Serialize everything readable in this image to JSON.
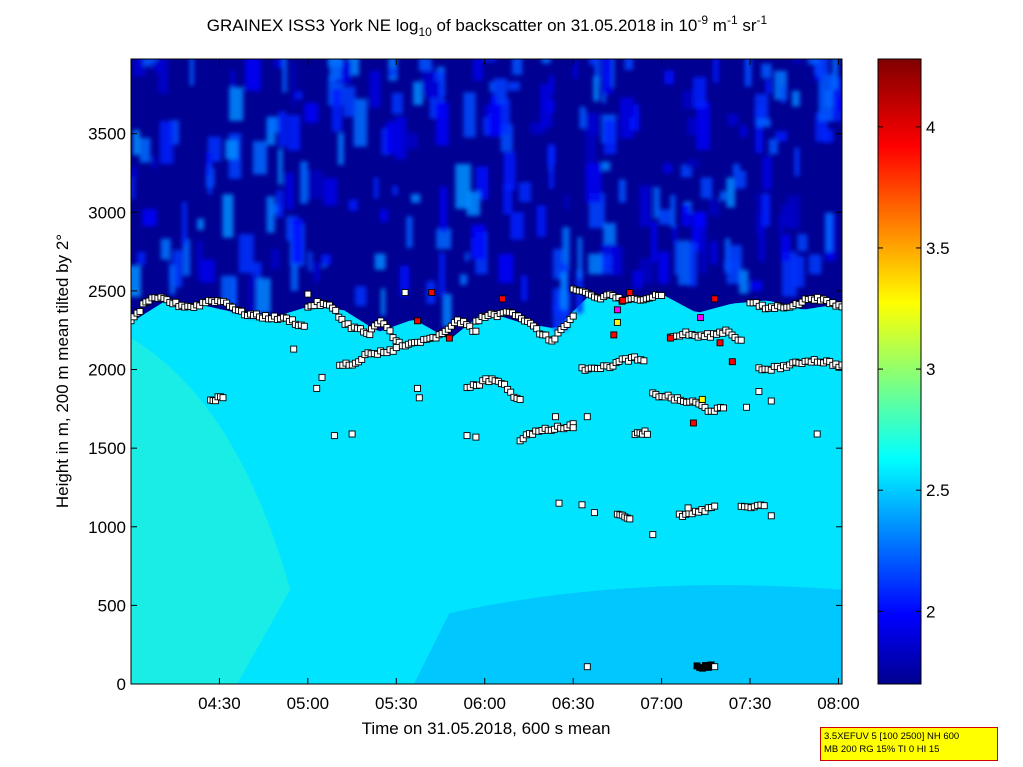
{
  "chart_data": {
    "type": "heatmap",
    "title_parts": {
      "main": "GRAINEX ISS3 York NE log",
      "main_sub": "10",
      "middle": " of backscatter on 31.05.2018 in 10",
      "exp1": "-9",
      "unit1": " m",
      "exp2": "-1",
      "unit2": " sr",
      "exp3": "-1"
    },
    "xlabel": "Time on 31.05.2018, 600 s mean",
    "ylabel": "Height in m, 200 m mean tilted by 2°",
    "x_ticks": [
      "04:30",
      "05:00",
      "05:30",
      "06:00",
      "06:30",
      "07:00",
      "07:30",
      "08:00"
    ],
    "x_tick_hours": [
      4.5,
      5.0,
      5.5,
      6.0,
      6.5,
      7.0,
      7.5,
      8.0
    ],
    "xlim_hours": [
      4.0,
      8.02
    ],
    "y_ticks": [
      "0",
      "500",
      "1000",
      "1500",
      "2000",
      "2500",
      "3000",
      "3500"
    ],
    "y_tick_values": [
      0,
      500,
      1000,
      1500,
      2000,
      2500,
      3000,
      3500
    ],
    "ylim": [
      0,
      3975
    ],
    "colorbar": {
      "ticks": [
        "2",
        "2.5",
        "3",
        "3.5",
        "4"
      ],
      "tick_values": [
        2,
        2.5,
        3,
        3.5,
        4
      ],
      "range": [
        1.7,
        4.28
      ],
      "colormap": "jet"
    },
    "field": {
      "boundary_layer_top_m": [
        [
          4.0,
          2300
        ],
        [
          4.2,
          2440
        ],
        [
          4.4,
          2410
        ],
        [
          4.6,
          2360
        ],
        [
          4.8,
          2330
        ],
        [
          5.0,
          2400
        ],
        [
          5.2,
          2380
        ],
        [
          5.4,
          2240
        ],
        [
          5.6,
          2320
        ],
        [
          5.8,
          2190
        ],
        [
          6.0,
          2370
        ],
        [
          6.2,
          2300
        ],
        [
          6.4,
          2260
        ],
        [
          6.6,
          2480
        ],
        [
          6.8,
          2440
        ],
        [
          7.0,
          2480
        ],
        [
          7.2,
          2360
        ],
        [
          7.4,
          2420
        ],
        [
          7.6,
          2440
        ],
        [
          7.8,
          2380
        ],
        [
          8.02,
          2420
        ]
      ],
      "boundary_layer_value": 2.6,
      "lower_value": 2.55,
      "near_surface_low_value": 2.4,
      "free_troposphere_value": 1.75,
      "aerosol_layer_top_value": 2.85
    },
    "marker_segments": [
      {
        "t0": 4.0,
        "t1": 4.98,
        "h": [
          2300,
          2440,
          2450,
          2410,
          2400,
          2440,
          2430,
          2360,
          2340,
          2330,
          2320,
          2270
        ],
        "color": "white"
      },
      {
        "t0": 5.0,
        "t1": 5.35,
        "h": [
          2400,
          2420,
          2410,
          2390,
          2300,
          2270,
          2250,
          2220
        ],
        "color": "white"
      },
      {
        "t0": 5.36,
        "t1": 5.95,
        "h": [
          2250,
          2310,
          2220,
          2140,
          2170,
          2180,
          2200,
          2230,
          2310,
          2290,
          2240
        ],
        "color": "white"
      },
      {
        "t0": 5.95,
        "t1": 6.5,
        "h": [
          2300,
          2350,
          2340,
          2380,
          2340,
          2290,
          2230,
          2180,
          2260,
          2330
        ],
        "color": "white"
      },
      {
        "t0": 6.5,
        "t1": 7.0,
        "h": [
          2500,
          2490,
          2450,
          2480,
          2430,
          2450,
          2460,
          2480
        ],
        "color": "white"
      },
      {
        "t0": 7.05,
        "t1": 7.45,
        "h": [
          2200,
          2230,
          2210,
          2220,
          2250,
          2180
        ],
        "color": "white"
      },
      {
        "t0": 7.5,
        "t1": 8.02,
        "h": [
          2430,
          2390,
          2400,
          2410,
          2460,
          2430,
          2400
        ],
        "color": "white"
      },
      {
        "t0": 5.18,
        "t1": 5.5,
        "h": [
          2030,
          2040,
          2100,
          2110,
          2130
        ],
        "color": "white"
      },
      {
        "t0": 5.9,
        "t1": 6.2,
        "h": [
          1890,
          1900,
          1930,
          1940,
          1910,
          1850,
          1800
        ],
        "color": "white"
      },
      {
        "t0": 6.55,
        "t1": 6.9,
        "h": [
          2000,
          2020,
          2010,
          2030,
          2060,
          2070,
          2050
        ],
        "color": "white"
      },
      {
        "t0": 6.95,
        "t1": 7.35,
        "h": [
          1840,
          1830,
          1800,
          1790,
          1740,
          1750
        ],
        "color": "white"
      },
      {
        "t0": 7.55,
        "t1": 8.02,
        "h": [
          2000,
          2010,
          2030,
          2060,
          2050,
          2020
        ],
        "color": "white"
      },
      {
        "t0": 6.2,
        "t1": 6.5,
        "h": [
          1550,
          1600,
          1620,
          1630,
          1650
        ],
        "color": "white"
      },
      {
        "t0": 4.45,
        "t1": 4.52,
        "h": [
          1810,
          1820
        ],
        "color": "white"
      },
      {
        "t0": 6.85,
        "t1": 6.92,
        "h": [
          1600,
          1600
        ],
        "color": "white"
      },
      {
        "t0": 7.45,
        "t1": 7.58,
        "h": [
          1130,
          1130,
          1130
        ],
        "color": "white"
      },
      {
        "t0": 7.1,
        "t1": 7.3,
        "h": [
          1070,
          1080,
          1100,
          1120
        ],
        "color": "white"
      },
      {
        "t0": 6.75,
        "t1": 6.82,
        "h": [
          1090,
          1050
        ],
        "color": "white"
      },
      {
        "t0": 7.2,
        "t1": 7.28,
        "h": [
          110,
          110
        ],
        "color": "black"
      }
    ],
    "scatter_points": [
      {
        "t": 5.0,
        "h": 2480,
        "c": "white"
      },
      {
        "t": 5.55,
        "h": 2490,
        "c": "white"
      },
      {
        "t": 5.7,
        "h": 2490,
        "c": "red"
      },
      {
        "t": 5.62,
        "h": 2310,
        "c": "red"
      },
      {
        "t": 5.8,
        "h": 2200,
        "c": "red"
      },
      {
        "t": 6.1,
        "h": 2450,
        "c": "red"
      },
      {
        "t": 6.78,
        "h": 2440,
        "c": "red"
      },
      {
        "t": 6.82,
        "h": 2490,
        "c": "red"
      },
      {
        "t": 6.75,
        "h": 2380,
        "c": "magenta"
      },
      {
        "t": 6.75,
        "h": 2300,
        "c": "yellow"
      },
      {
        "t": 6.73,
        "h": 2220,
        "c": "red"
      },
      {
        "t": 7.05,
        "h": 2200,
        "c": "red"
      },
      {
        "t": 7.22,
        "h": 2330,
        "c": "magenta"
      },
      {
        "t": 7.23,
        "h": 1810,
        "c": "yellow"
      },
      {
        "t": 7.18,
        "h": 1660,
        "c": "red"
      },
      {
        "t": 7.3,
        "h": 2450,
        "c": "red"
      },
      {
        "t": 7.4,
        "h": 2050,
        "c": "red"
      },
      {
        "t": 7.33,
        "h": 2170,
        "c": "red"
      },
      {
        "t": 5.9,
        "h": 1580,
        "c": "white"
      },
      {
        "t": 5.95,
        "h": 1570,
        "c": "white"
      },
      {
        "t": 6.42,
        "h": 1150,
        "c": "white"
      },
      {
        "t": 6.55,
        "h": 1140,
        "c": "white"
      },
      {
        "t": 6.62,
        "h": 1090,
        "c": "white"
      },
      {
        "t": 6.95,
        "h": 950,
        "c": "white"
      },
      {
        "t": 7.15,
        "h": 1120,
        "c": "white"
      },
      {
        "t": 7.62,
        "h": 1070,
        "c": "white"
      },
      {
        "t": 7.88,
        "h": 1590,
        "c": "white"
      },
      {
        "t": 5.25,
        "h": 1590,
        "c": "white"
      },
      {
        "t": 5.15,
        "h": 1580,
        "c": "white"
      },
      {
        "t": 4.92,
        "h": 2130,
        "c": "white"
      },
      {
        "t": 5.05,
        "h": 1880,
        "c": "white"
      },
      {
        "t": 5.08,
        "h": 1950,
        "c": "white"
      },
      {
        "t": 5.62,
        "h": 1880,
        "c": "white"
      },
      {
        "t": 5.63,
        "h": 1820,
        "c": "white"
      },
      {
        "t": 6.58,
        "h": 110,
        "c": "white"
      },
      {
        "t": 7.3,
        "h": 110,
        "c": "white"
      },
      {
        "t": 6.5,
        "h": 1630,
        "c": "white"
      },
      {
        "t": 6.4,
        "h": 1700,
        "c": "white"
      },
      {
        "t": 6.58,
        "h": 1700,
        "c": "white"
      },
      {
        "t": 7.55,
        "h": 1860,
        "c": "white"
      },
      {
        "t": 7.62,
        "h": 1800,
        "c": "white"
      },
      {
        "t": 7.48,
        "h": 1760,
        "c": "white"
      }
    ]
  },
  "info_box": {
    "line1": "3.5XEFUV 5 [100 2500] NH 600",
    "line2": "MB 200 RG 15% TI 0 HI 15"
  }
}
